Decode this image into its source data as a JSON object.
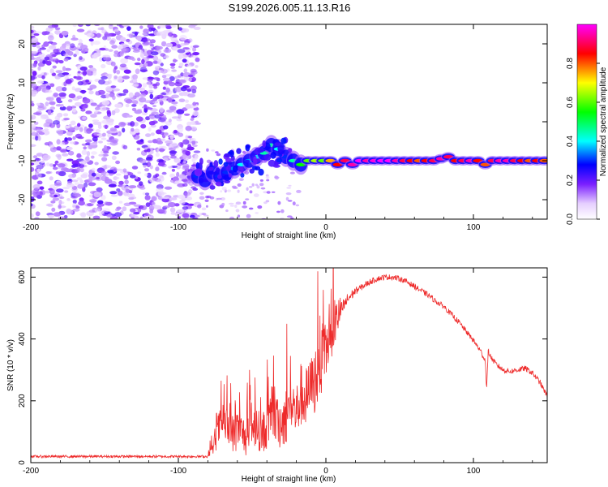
{
  "title": "S199.2026.005.11.13.R16",
  "chart_data": [
    {
      "type": "heatmap",
      "id": "spectrogram",
      "xlabel": "Height of straight line (km)",
      "ylabel": "Frequency (Hz)",
      "xlim": [
        -200,
        150
      ],
      "ylim": [
        -25,
        25
      ],
      "xticks": [
        "-200",
        "-100",
        "0",
        "100"
      ],
      "yticks": [
        "20",
        "10",
        "0",
        "-10",
        "-20"
      ],
      "noise_region_x": [
        -200,
        -87
      ],
      "signal_start_x": -87,
      "signal_track": {
        "x": [
          -87,
          -82,
          -77,
          -72,
          -67,
          -62,
          -57,
          -52,
          -47,
          -42,
          -37,
          -32,
          -27,
          -22,
          -17,
          -12,
          -7,
          -2,
          3,
          8,
          13,
          18,
          23,
          28,
          33,
          38,
          43,
          48,
          53,
          58,
          63,
          68,
          73,
          78,
          83,
          88,
          93,
          98,
          103,
          108,
          113,
          118,
          123,
          128,
          133,
          138,
          143,
          148
        ],
        "y": [
          -14,
          -15,
          -13,
          -14,
          -13,
          -12,
          -11,
          -10,
          -9,
          -8,
          -6,
          -7,
          -9,
          -10,
          -11,
          -10,
          -10,
          -10,
          -10,
          -11,
          -10,
          -11,
          -10,
          -10,
          -10,
          -10,
          -10,
          -10,
          -10,
          -10,
          -10,
          -10,
          -10,
          -9.5,
          -9,
          -10,
          -10,
          -10,
          -10,
          -11,
          -10,
          -10,
          -10,
          -10,
          -10,
          -10,
          -10,
          -10
        ],
        "amplitude": [
          0.3,
          0.25,
          0.25,
          0.3,
          0.3,
          0.35,
          0.4,
          0.35,
          0.4,
          0.45,
          0.45,
          0.4,
          0.3,
          0.45,
          0.55,
          0.6,
          0.65,
          0.6,
          0.75,
          0.85,
          0.9,
          0.95,
          1.0,
          0.95,
          0.98,
          1.0,
          1.0,
          0.95,
          0.9,
          0.85,
          0.8,
          0.85,
          0.9,
          0.95,
          0.9,
          0.85,
          0.9,
          0.95,
          0.85,
          0.8,
          0.9,
          0.95,
          0.95,
          0.9,
          0.85,
          0.8,
          0.85,
          0.8
        ]
      },
      "colorbar": {
        "label": "Normalized spectral amplitude",
        "range": [
          0,
          1
        ],
        "ticks": [
          "0.0",
          "0.2",
          "0.4",
          "0.6",
          "0.8"
        ],
        "colors": [
          "#ffffff",
          "#7a1fff",
          "#0000ff",
          "#00ffff",
          "#00ff00",
          "#ffff00",
          "#ff0000",
          "#ff00ff"
        ]
      }
    },
    {
      "type": "line",
      "id": "snr",
      "xlabel": "Height of straight line (km)",
      "ylabel": "SNR (10 * v/v)",
      "xlim": [
        -200,
        150
      ],
      "ylim": [
        0,
        630
      ],
      "xticks": [
        "-200",
        "-100",
        "0",
        "100"
      ],
      "yticks": [
        "0",
        "200",
        "400",
        "600"
      ],
      "color": "#ee2b2b",
      "envelope": {
        "x": [
          -200,
          -150,
          -100,
          -80,
          -77,
          -74,
          -71,
          -68,
          -65,
          -62,
          -59,
          -56,
          -53,
          -50,
          -47,
          -44,
          -41,
          -38,
          -35,
          -32,
          -29,
          -26,
          -23,
          -20,
          -17,
          -14,
          -11,
          -8,
          -5,
          -2,
          1,
          4,
          7,
          10,
          15,
          20,
          25,
          30,
          35,
          40,
          45,
          50,
          55,
          60,
          65,
          70,
          75,
          80,
          85,
          90,
          95,
          100,
          105,
          108,
          109,
          110,
          112,
          115,
          120,
          125,
          130,
          135,
          140,
          145,
          150
        ],
        "y": [
          20,
          20,
          20,
          20,
          40,
          90,
          130,
          120,
          100,
          90,
          110,
          90,
          80,
          100,
          120,
          90,
          110,
          130,
          150,
          120,
          140,
          160,
          190,
          160,
          220,
          200,
          230,
          260,
          300,
          330,
          380,
          420,
          460,
          490,
          530,
          555,
          570,
          585,
          595,
          600,
          600,
          595,
          585,
          570,
          555,
          540,
          520,
          505,
          480,
          455,
          425,
          395,
          360,
          330,
          240,
          360,
          340,
          320,
          300,
          295,
          300,
          305,
          290,
          260,
          215
        ]
      },
      "noise": [
        8,
        8,
        8,
        8,
        25,
        60,
        80,
        80,
        80,
        80,
        80,
        80,
        80,
        80,
        80,
        80,
        90,
        95,
        100,
        100,
        110,
        120,
        120,
        120,
        130,
        130,
        130,
        140,
        140,
        130,
        120,
        100,
        80,
        60,
        40,
        25,
        20,
        20,
        18,
        18,
        18,
        18,
        18,
        18,
        18,
        18,
        18,
        18,
        18,
        18,
        18,
        18,
        18,
        18,
        18,
        18,
        18,
        18,
        18,
        18,
        18,
        18,
        18,
        18,
        18
      ]
    }
  ]
}
